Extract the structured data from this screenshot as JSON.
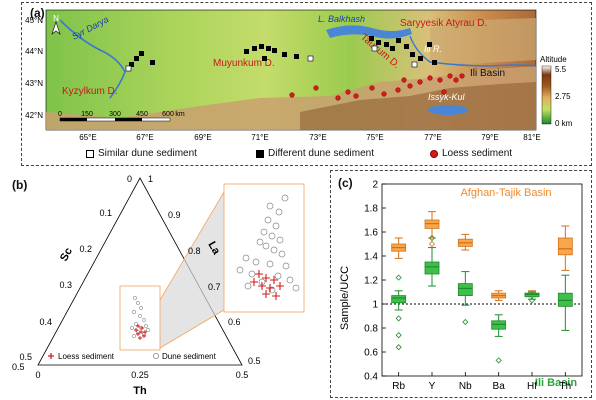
{
  "panel_a": {
    "label": "(a)",
    "lat_ticks": [
      "45°N",
      "44°N",
      "43°N",
      "42°N"
    ],
    "lon_ticks": [
      "65°E",
      "67°E",
      "69°E",
      "71°E",
      "73°E",
      "75°E",
      "77°E",
      "79°E",
      "81°E"
    ],
    "north": "N",
    "places": {
      "balkhash": "L. Balkhash",
      "saryyesik": "Saryyesik Atyrau D.",
      "taukum": "Taukum D.",
      "muyunkum": "Muyunkum D.",
      "syrdarya": "Syr Darya",
      "kyzylkum": "Kyzylkum D.",
      "ili_r": "Ili R.",
      "ili_basin": "Ili Basin",
      "issyk": "Issyk-Kul"
    },
    "scale": {
      "labels": [
        "0",
        "150",
        "300",
        "450",
        "600"
      ],
      "unit": "km"
    },
    "altitude": {
      "title": "Altitude",
      "max": "5.5",
      "mid": "2.75",
      "min": "0 km"
    },
    "legend": {
      "similar": "Similar dune sediment",
      "different": "Different dune sediment",
      "loess": "Loess sediment"
    }
  },
  "panel_b": {
    "label": "(b)",
    "ternary": {
      "vertex_top": "Sc",
      "vertex_right": "La",
      "vertex_bottom": "Th",
      "left_ticks": [
        "0.5",
        "0.4",
        "0.3",
        "0.2",
        "0.1",
        "0"
      ],
      "right_ticks": [
        "1",
        "0.9",
        "0.8",
        "0.7",
        "0.6",
        "0.5"
      ],
      "bottom_ticks": [
        "0",
        "0.25",
        "0.5"
      ],
      "bottom_left": "0.5"
    },
    "legend": {
      "loess": "Loess sediment",
      "dune": "Dune sediment"
    }
  },
  "panel_c": {
    "label": "(c)",
    "chart_data": {
      "type": "box",
      "ylabel": "Sample/UCC",
      "ylim": [
        0.4,
        2.0
      ],
      "yticks": [
        "0.4",
        "0.6",
        "0.8",
        "1",
        "1.2",
        "1.4",
        "1.6",
        "1.8",
        "2"
      ],
      "categories": [
        "Rb",
        "Y",
        "Nb",
        "Ba",
        "Hf",
        "Th"
      ],
      "reference_line": 1.0,
      "series": [
        {
          "name": "Afghan-Tajik Basin",
          "color": "#f7a64a",
          "boxes": [
            {
              "min": 1.38,
              "q1": 1.44,
              "median": 1.47,
              "q3": 1.5,
              "max": 1.55,
              "outliers": []
            },
            {
              "min": 1.55,
              "q1": 1.63,
              "median": 1.67,
              "q3": 1.7,
              "max": 1.77,
              "outliers": [
                1.5
              ]
            },
            {
              "min": 1.45,
              "q1": 1.48,
              "median": 1.51,
              "q3": 1.54,
              "max": 1.58,
              "outliers": []
            },
            {
              "min": 1.03,
              "q1": 1.05,
              "median": 1.07,
              "q3": 1.09,
              "max": 1.11,
              "outliers": []
            },
            {
              "min": 1.06,
              "q1": 1.07,
              "median": 1.08,
              "q3": 1.09,
              "max": 1.11,
              "outliers": []
            },
            {
              "min": 1.28,
              "q1": 1.41,
              "median": 1.46,
              "q3": 1.55,
              "max": 1.65,
              "outliers": []
            }
          ]
        },
        {
          "name": "Ili Basin",
          "color": "#3fbf4a",
          "boxes": [
            {
              "min": 0.95,
              "q1": 1.01,
              "median": 1.05,
              "q3": 1.07,
              "max": 1.11,
              "outliers": [
                1.22,
                0.88,
                0.74,
                0.64
              ]
            },
            {
              "min": 1.15,
              "q1": 1.25,
              "median": 1.31,
              "q3": 1.35,
              "max": 1.47,
              "outliers": [
                1.55
              ]
            },
            {
              "min": 0.99,
              "q1": 1.07,
              "median": 1.13,
              "q3": 1.17,
              "max": 1.27,
              "outliers": [
                0.85
              ]
            },
            {
              "min": 0.73,
              "q1": 0.79,
              "median": 0.83,
              "q3": 0.86,
              "max": 0.91,
              "outliers": [
                0.53
              ]
            },
            {
              "min": 1.04,
              "q1": 1.06,
              "median": 1.08,
              "q3": 1.09,
              "max": 1.1,
              "outliers": [
                1.03
              ]
            },
            {
              "min": 0.78,
              "q1": 0.98,
              "median": 1.03,
              "q3": 1.09,
              "max": 1.24,
              "outliers": []
            }
          ]
        }
      ]
    }
  }
}
